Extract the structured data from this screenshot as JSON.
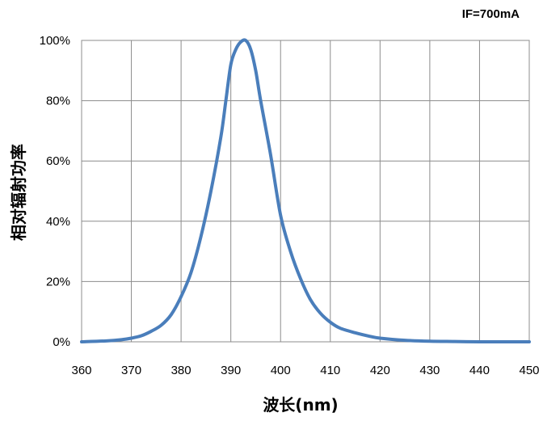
{
  "chart_data": {
    "type": "line",
    "annotation": "IF=700mA",
    "xlabel": "波长(nm)",
    "ylabel": "相对辐射功率",
    "xlim": [
      360,
      450
    ],
    "ylim": [
      0,
      100
    ],
    "x_ticks": [
      360,
      370,
      380,
      390,
      400,
      410,
      420,
      430,
      440,
      450
    ],
    "x_tick_labels": [
      "360",
      "370",
      "380",
      "390",
      "400",
      "410",
      "420",
      "430",
      "440",
      "450"
    ],
    "y_ticks": [
      0,
      20,
      40,
      60,
      80,
      100
    ],
    "y_tick_labels": [
      "0%",
      "20%",
      "40%",
      "60%",
      "80%",
      "100%"
    ],
    "grid": true,
    "legend": "none",
    "series_color": "#4a7ebb",
    "series": [
      {
        "x": [
          360,
          365,
          368,
          370,
          372,
          374,
          376,
          378,
          380,
          382,
          384,
          386,
          388,
          389,
          390,
          391,
          392,
          393,
          394,
          395,
          396,
          398,
          400,
          402,
          404,
          406,
          408,
          410,
          412,
          415,
          418,
          420,
          425,
          430,
          435,
          440,
          445,
          450
        ],
        "values": [
          0,
          0.3,
          0.7,
          1.2,
          2.0,
          3.5,
          5.5,
          9.0,
          15,
          23,
          35,
          50,
          68,
          80,
          92,
          97,
          99.5,
          100,
          97,
          90,
          80,
          62,
          42,
          30,
          21,
          14,
          9.5,
          6.5,
          4.5,
          3.0,
          1.8,
          1.2,
          0.5,
          0.2,
          0.1,
          0,
          0,
          0
        ]
      }
    ]
  }
}
